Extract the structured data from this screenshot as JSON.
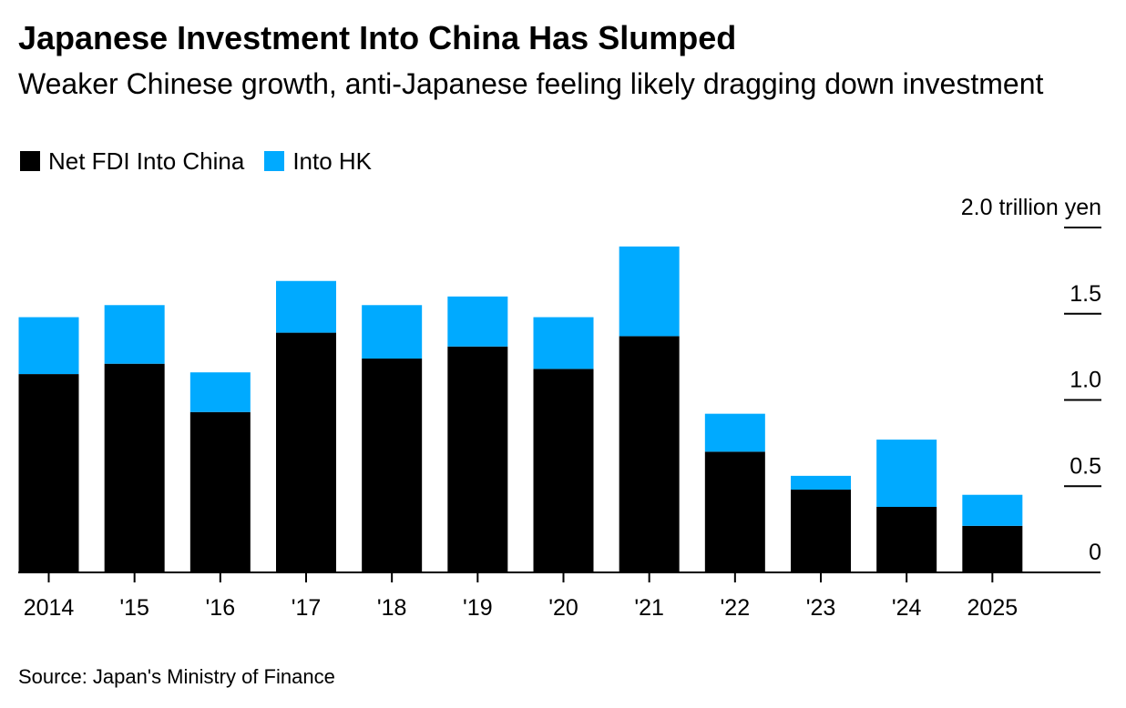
{
  "header": {
    "title": "Japanese Investment Into China Has Slumped",
    "subtitle": "Weaker Chinese growth, anti-Japanese feeling likely dragging down investment"
  },
  "colors": {
    "china": "#000000",
    "hk": "#00aaff"
  },
  "source": "Source: Japan's Ministry of Finance",
  "chart_data": {
    "type": "bar",
    "stacked": true,
    "title": "Japanese Investment Into China Has Slumped",
    "subtitle": "Weaker Chinese growth, anti-Japanese feeling likely dragging down investment",
    "unit": "trillion yen",
    "categories": [
      "2014",
      "'15",
      "'16",
      "'17",
      "'18",
      "'19",
      "'20",
      "'21",
      "'22",
      "'23",
      "'24",
      "2025"
    ],
    "series": [
      {
        "name": "Net FDI Into China",
        "color": "#000000",
        "values": [
          1.15,
          1.21,
          0.93,
          1.39,
          1.24,
          1.31,
          1.18,
          1.37,
          0.7,
          0.48,
          0.38,
          0.27
        ]
      },
      {
        "name": "Into HK",
        "color": "#00aaff",
        "values": [
          0.33,
          0.34,
          0.23,
          0.3,
          0.31,
          0.29,
          0.3,
          0.52,
          0.22,
          0.08,
          0.39,
          0.18
        ]
      }
    ],
    "y_ticks": [
      {
        "value": 0,
        "label": "0"
      },
      {
        "value": 0.5,
        "label": "0.5"
      },
      {
        "value": 1.0,
        "label": "1.0"
      },
      {
        "value": 1.5,
        "label": "1.5"
      },
      {
        "value": 2.0,
        "label": "2.0 trillion yen"
      }
    ],
    "ylim": [
      0,
      2.0
    ],
    "xlabel": "",
    "ylabel": "trillion yen",
    "legend_position": "top-left",
    "grid": false
  }
}
